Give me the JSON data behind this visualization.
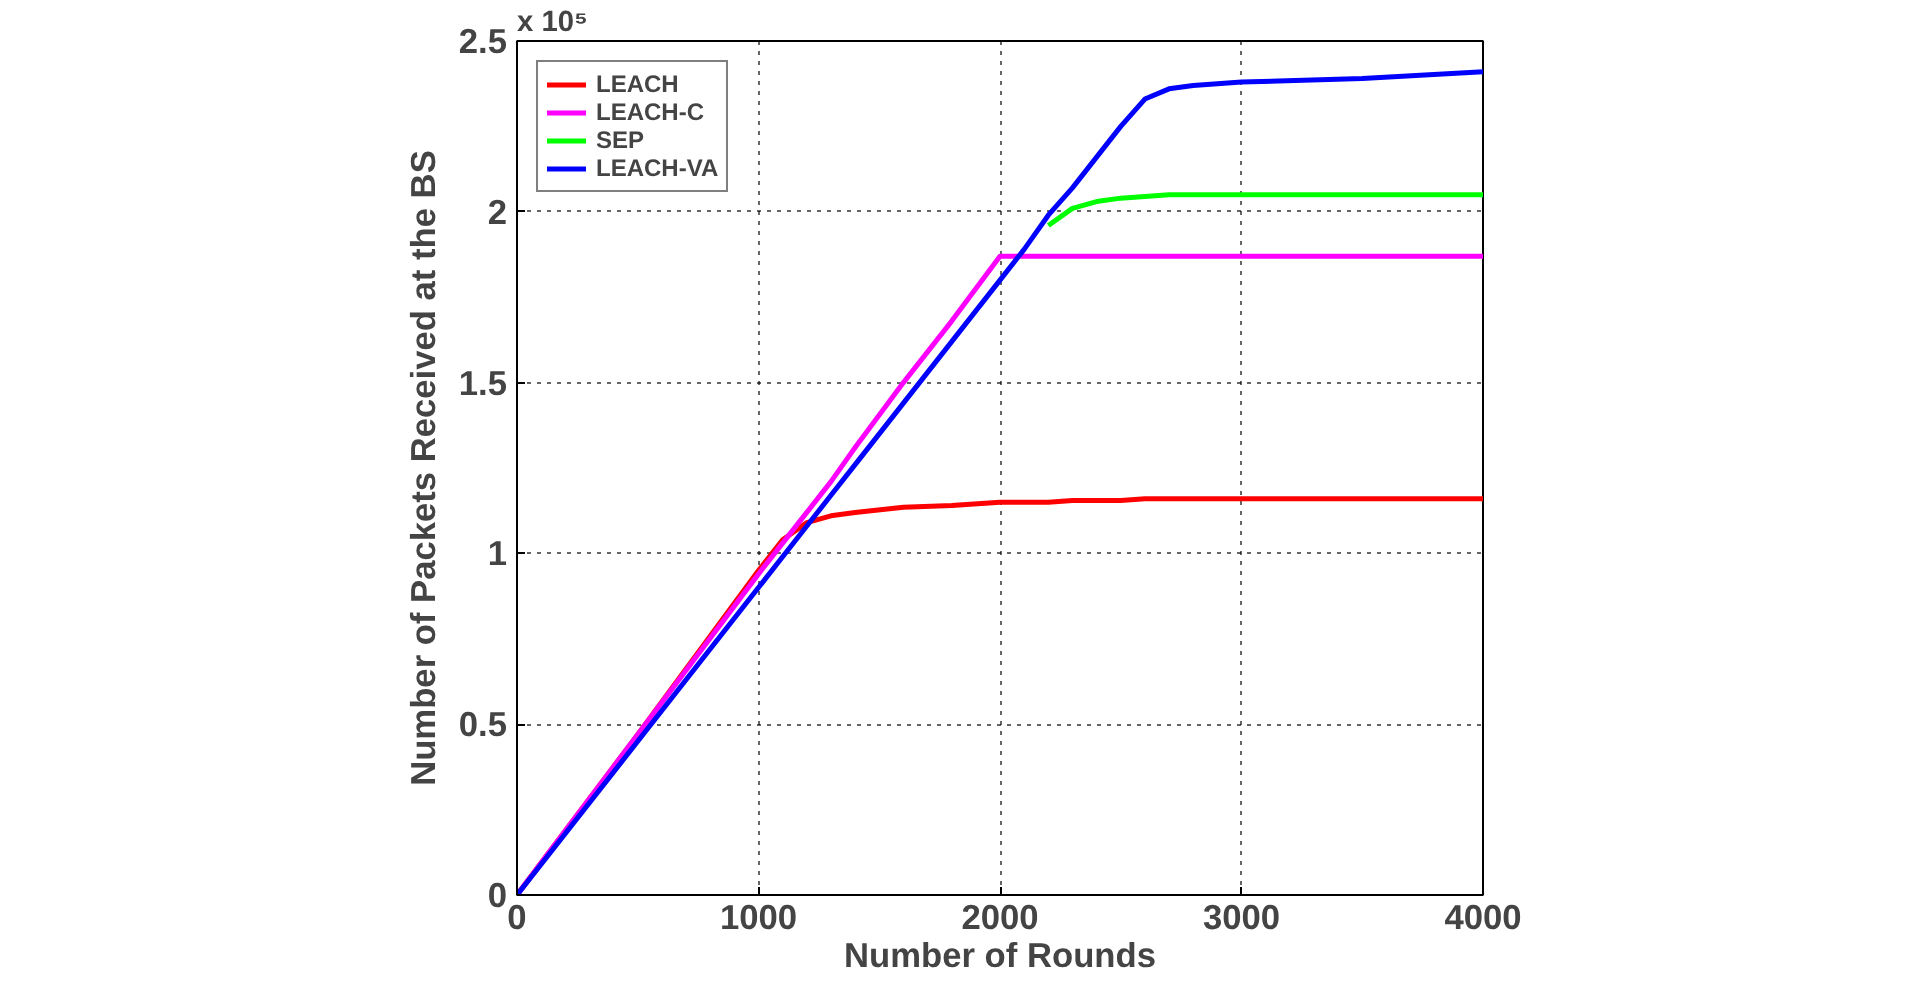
{
  "chart_data": {
    "type": "line",
    "xlabel": "Number of Rounds",
    "ylabel": "Number of Packets Received at the BS",
    "annotations": [
      "x 10⁵"
    ],
    "x": [
      0,
      500,
      1000,
      1100,
      1200,
      1300,
      1400,
      1600,
      1800,
      2000,
      2100,
      2200,
      2300,
      2400,
      2500,
      2600,
      2700,
      2800,
      3000,
      3500,
      4000
    ],
    "series": [
      {
        "name": "LEACH",
        "color": "#ff0000",
        "values": [
          0,
          0.47,
          0.95,
          1.04,
          1.09,
          1.11,
          1.12,
          1.135,
          1.14,
          1.15,
          1.15,
          1.15,
          1.155,
          1.155,
          1.155,
          1.16,
          1.16,
          1.16,
          1.16,
          1.16,
          1.16
        ]
      },
      {
        "name": "LEACH-C",
        "color": "#ff00ff",
        "values": [
          0,
          0.47,
          0.94,
          1.03,
          1.12,
          1.21,
          1.31,
          1.5,
          1.68,
          1.87,
          1.87,
          1.87,
          1.87,
          1.87,
          1.87,
          1.87,
          1.87,
          1.87,
          1.87,
          1.87,
          1.87
        ]
      },
      {
        "name": "SEP",
        "color": "#00ff00",
        "values": [
          null,
          null,
          null,
          null,
          null,
          null,
          null,
          null,
          null,
          null,
          null,
          1.96,
          2.01,
          2.03,
          2.04,
          2.045,
          2.05,
          2.05,
          2.05,
          2.05,
          2.05
        ]
      },
      {
        "name": "LEACH-VA",
        "color": "#0000ff",
        "values": [
          0,
          0.45,
          0.9,
          0.99,
          1.08,
          1.17,
          1.26,
          1.44,
          1.62,
          1.8,
          1.89,
          1.99,
          2.07,
          2.16,
          2.25,
          2.33,
          2.36,
          2.37,
          2.38,
          2.39,
          2.41
        ]
      }
    ],
    "xlim": [
      0,
      4000
    ],
    "ylim": [
      0,
      2.5
    ],
    "xticks": [
      0,
      1000,
      2000,
      3000,
      4000
    ],
    "yticks": [
      0,
      0.5,
      1,
      1.5,
      2,
      2.5
    ],
    "grid": true,
    "legend": "top left",
    "line_style": "solid",
    "marker": "none"
  }
}
